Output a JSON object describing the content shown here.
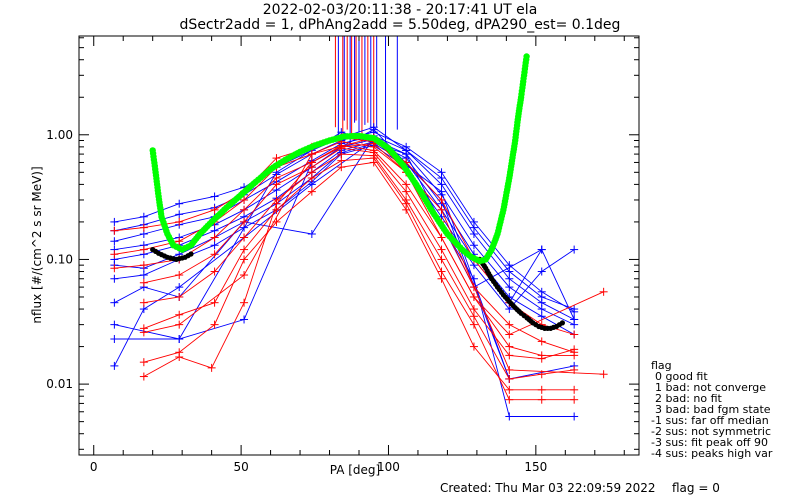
{
  "titles": {
    "line1": "2022-02-03/20:11:38 - 20:17:41 UT ela",
    "line2": "dSectr2add = 1, dPhAng2add = 5.50deg, dPA290_est=   0.1deg"
  },
  "footer": {
    "created": "Created: Thu Mar 03 22:09:59 2022",
    "flag": "flag = 0"
  },
  "legend": {
    "title": "flag",
    "items": [
      "0 good fit",
      "1 bad: not converge",
      "2 bad: no fit",
      "3 bad: bad fgm state",
      "-1 sus: far off median",
      "-2 sus: not symmetric",
      "-3 sus: fit peak off 90",
      "-4 sus: peaks high var"
    ]
  },
  "chart_data": {
    "type": "line",
    "xlabel": "PA [deg]",
    "ylabel": "nflux [#/(cm^2 s sr MeV)]",
    "xlim": [
      -5,
      185
    ],
    "ylim": [
      0.0027,
      6.2
    ],
    "yscale": "log",
    "xticks": [
      0,
      50,
      100,
      150
    ],
    "yticks": [
      0.01,
      0.1,
      1.0
    ],
    "ytick_labels": [
      "0.01",
      "0.10",
      "1.00"
    ],
    "colors": {
      "blue": "#0000ff",
      "red": "#ff0000",
      "green": "#00ff00",
      "black": "#000000"
    },
    "series": [
      {
        "color": "blue",
        "x": [
          7,
          17,
          29,
          41,
          51,
          62,
          74,
          84,
          95,
          106,
          118,
          129,
          141,
          152,
          163
        ],
        "y": [
          0.2,
          0.22,
          0.28,
          0.32,
          0.38,
          0.55,
          0.75,
          0.95,
          1.15,
          0.75,
          0.45,
          0.18,
          0.08,
          0.05,
          0.04
        ]
      },
      {
        "color": "blue",
        "x": [
          7,
          17,
          29,
          41,
          51,
          62,
          74,
          84,
          95,
          106,
          118,
          129,
          141,
          152,
          163
        ],
        "y": [
          0.17,
          0.19,
          0.23,
          0.26,
          0.33,
          0.48,
          0.7,
          0.9,
          1.05,
          0.8,
          0.5,
          0.2,
          0.09,
          0.055,
          0.038
        ]
      },
      {
        "color": "blue",
        "x": [
          7,
          17,
          29,
          41,
          51,
          62,
          74,
          84,
          95,
          106,
          118,
          129,
          141,
          152,
          163
        ],
        "y": [
          0.14,
          0.16,
          0.19,
          0.22,
          0.3,
          0.42,
          0.62,
          0.85,
          0.98,
          0.75,
          0.4,
          0.16,
          0.07,
          0.045,
          0.033
        ]
      },
      {
        "color": "blue",
        "x": [
          7,
          17,
          29,
          41,
          51,
          62,
          74,
          84,
          95,
          106,
          118,
          129,
          141,
          152,
          163
        ],
        "y": [
          0.12,
          0.13,
          0.15,
          0.19,
          0.25,
          0.36,
          0.55,
          0.8,
          0.92,
          0.7,
          0.33,
          0.13,
          0.06,
          0.04,
          0.03
        ]
      },
      {
        "color": "blue",
        "x": [
          7,
          17,
          29,
          41,
          51,
          62,
          74,
          84,
          95,
          106,
          118,
          129,
          141,
          152,
          163
        ],
        "y": [
          0.1,
          0.11,
          0.13,
          0.17,
          0.22,
          0.31,
          0.5,
          0.75,
          0.88,
          0.65,
          0.28,
          0.11,
          0.05,
          0.035,
          0.025
        ]
      },
      {
        "color": "blue",
        "x": [
          7,
          17,
          29,
          41,
          51,
          62,
          74,
          84,
          95,
          106,
          118,
          129,
          141,
          152,
          163
        ],
        "y": [
          0.09,
          0.085,
          0.11,
          0.15,
          0.2,
          0.28,
          0.45,
          0.72,
          0.85,
          0.6,
          0.25,
          0.1,
          0.045,
          0.12,
          0.033
        ]
      },
      {
        "color": "blue",
        "x": [
          7,
          17,
          29,
          41,
          51,
          62,
          74,
          84,
          95,
          106,
          118,
          129,
          141,
          152,
          163
        ],
        "y": [
          0.07,
          0.075,
          0.1,
          0.13,
          0.18,
          0.25,
          0.42,
          0.7,
          0.82,
          0.55,
          0.22,
          0.09,
          0.04,
          0.08,
          0.12
        ]
      },
      {
        "color": "blue",
        "x": [
          7,
          17,
          29,
          51,
          74,
          95,
          106,
          129,
          141,
          163
        ],
        "y": [
          0.045,
          0.06,
          0.05,
          0.2,
          0.16,
          0.95,
          0.55,
          0.07,
          0.0055,
          0.0055
        ]
      },
      {
        "color": "blue",
        "x": [
          7,
          29,
          51,
          74,
          95,
          118,
          141,
          163
        ],
        "y": [
          0.03,
          0.023,
          0.033,
          0.6,
          1.1,
          0.3,
          0.011,
          0.014
        ]
      },
      {
        "color": "blue",
        "x": [
          7,
          29,
          62,
          84,
          106,
          129,
          152
        ],
        "y": [
          0.023,
          0.023,
          0.5,
          1.05,
          0.7,
          0.06,
          0.12
        ]
      },
      {
        "color": "blue",
        "x": [
          7,
          17,
          29,
          51,
          74,
          95,
          118,
          141
        ],
        "y": [
          0.014,
          0.04,
          0.06,
          0.15,
          0.4,
          0.9,
          0.35,
          0.011
        ]
      },
      {
        "color": "red",
        "x": [
          7,
          17,
          29,
          41,
          51,
          62,
          74,
          84,
          95,
          106,
          118,
          129,
          141,
          152,
          163
        ],
        "y": [
          0.17,
          0.18,
          0.2,
          0.25,
          0.35,
          0.65,
          0.8,
          0.95,
          0.88,
          0.6,
          0.3,
          0.1,
          0.045,
          0.03,
          0.025
        ]
      },
      {
        "color": "red",
        "x": [
          7,
          17,
          29,
          41,
          51,
          62,
          74,
          84,
          95,
          106,
          118,
          129,
          141,
          152,
          163
        ],
        "y": [
          0.11,
          0.12,
          0.14,
          0.2,
          0.3,
          0.55,
          0.7,
          0.88,
          0.8,
          0.5,
          0.2,
          0.06,
          0.03,
          0.022,
          0.018
        ]
      },
      {
        "color": "red",
        "x": [
          7,
          17,
          29,
          41,
          51,
          62,
          74,
          84,
          95,
          106,
          118,
          129,
          141,
          152,
          163
        ],
        "y": [
          0.085,
          0.09,
          0.1,
          0.15,
          0.25,
          0.45,
          0.6,
          0.82,
          0.75,
          0.4,
          0.15,
          0.05,
          0.02,
          0.017,
          0.017
        ]
      },
      {
        "color": "red",
        "x": [
          17,
          29,
          41,
          51,
          62,
          74,
          84,
          95,
          106,
          118,
          129,
          141,
          152,
          163
        ],
        "y": [
          0.065,
          0.075,
          0.11,
          0.2,
          0.4,
          0.55,
          0.78,
          0.72,
          0.35,
          0.12,
          0.04,
          0.017,
          0.016,
          0.019
        ]
      },
      {
        "color": "red",
        "x": [
          17,
          29,
          41,
          51,
          62,
          74,
          84,
          95,
          106,
          118,
          129,
          141,
          152,
          163
        ],
        "y": [
          0.045,
          0.05,
          0.08,
          0.15,
          0.3,
          0.5,
          0.7,
          0.68,
          0.3,
          0.1,
          0.035,
          0.011,
          0.012,
          0.013
        ]
      },
      {
        "color": "red",
        "x": [
          17,
          29,
          41,
          51,
          62,
          74,
          84,
          95,
          106,
          118,
          129,
          141,
          152,
          163
        ],
        "y": [
          0.028,
          0.036,
          0.045,
          0.12,
          0.25,
          0.45,
          0.62,
          0.65,
          0.28,
          0.08,
          0.03,
          0.0075,
          0.0075,
          0.0075
        ]
      },
      {
        "color": "red",
        "x": [
          17,
          29,
          41,
          51,
          62,
          74,
          84,
          95,
          106,
          118,
          129,
          141,
          152,
          163
        ],
        "y": [
          0.015,
          0.018,
          0.03,
          0.1,
          0.2,
          0.35,
          0.55,
          0.6,
          0.25,
          0.07,
          0.02,
          0.009,
          0.009,
          0.009
        ]
      },
      {
        "color": "red",
        "x": [
          17,
          29,
          40,
          51,
          62,
          74,
          84,
          95,
          106,
          118,
          129,
          141,
          173
        ],
        "y": [
          0.0115,
          0.0165,
          0.0135,
          0.045,
          0.28,
          0.6,
          0.8,
          0.85,
          0.5,
          0.15,
          0.05,
          0.025,
          0.055
        ]
      },
      {
        "color": "red",
        "x": [
          17,
          29,
          51,
          74,
          95,
          118,
          141,
          173
        ],
        "y": [
          0.026,
          0.03,
          0.075,
          0.7,
          0.95,
          0.25,
          0.013,
          0.012
        ]
      }
    ],
    "red_spikes_x": [
      82,
      84.5,
      86,
      87.5,
      89,
      91,
      93,
      95
    ],
    "blue_spikes_x": [
      83,
      85,
      87,
      88.5,
      90,
      92,
      94,
      96,
      99,
      103
    ],
    "spike_bottom_y": [
      1.15,
      0.9,
      1.1,
      0.95,
      1.3,
      0.85,
      1.25,
      1.05,
      1.2,
      1.15
    ],
    "green_fit": {
      "x": [
        20,
        21,
        22,
        23,
        25,
        27,
        30,
        33,
        36,
        40,
        45,
        50,
        55,
        60,
        65,
        70,
        75,
        80,
        85,
        90,
        95,
        100,
        105,
        110,
        115,
        120,
        125,
        128,
        131,
        133,
        135,
        137,
        139,
        141,
        143,
        144,
        145,
        146,
        147
      ],
      "y": [
        0.75,
        0.5,
        0.32,
        0.22,
        0.16,
        0.13,
        0.12,
        0.13,
        0.16,
        0.2,
        0.26,
        0.33,
        0.42,
        0.53,
        0.63,
        0.73,
        0.82,
        0.9,
        0.97,
        0.98,
        0.94,
        0.78,
        0.57,
        0.38,
        0.24,
        0.16,
        0.12,
        0.105,
        0.097,
        0.1,
        0.12,
        0.16,
        0.25,
        0.45,
        0.9,
        1.4,
        2.0,
        3.0,
        4.5
      ]
    },
    "black_fit": {
      "x": [
        20,
        22,
        25,
        28,
        31,
        34,
        131,
        133,
        135,
        137,
        139,
        141,
        143,
        145,
        147,
        149,
        151,
        153,
        155,
        157,
        159,
        160
      ],
      "y": [
        0.12,
        0.112,
        0.104,
        0.1,
        0.104,
        0.114,
        0.1,
        0.085,
        0.07,
        0.06,
        0.052,
        0.046,
        0.041,
        0.037,
        0.034,
        0.031,
        0.029,
        0.028,
        0.028,
        0.029,
        0.031,
        0.033
      ]
    }
  }
}
